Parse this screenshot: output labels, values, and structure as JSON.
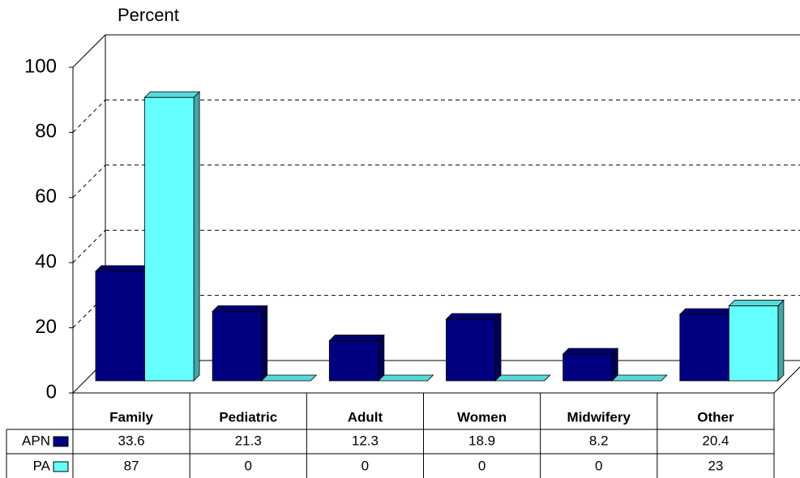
{
  "chart_data": {
    "type": "bar",
    "y_label": "Percent",
    "categories": [
      "Family",
      "Pediatric",
      "Adult",
      "Women",
      "Midwifery",
      "Other"
    ],
    "series": [
      {
        "name": "APN",
        "color": "#000080",
        "values": [
          33.6,
          21.3,
          12.3,
          18.9,
          8.2,
          20.4
        ]
      },
      {
        "name": "PA",
        "color": "#66ffff",
        "values": [
          87,
          0,
          0,
          0,
          0,
          23
        ]
      }
    ],
    "ylim": [
      0,
      100
    ],
    "yticks": [
      0,
      20,
      40,
      60,
      80,
      100
    ],
    "grid": true,
    "data_table": true
  }
}
